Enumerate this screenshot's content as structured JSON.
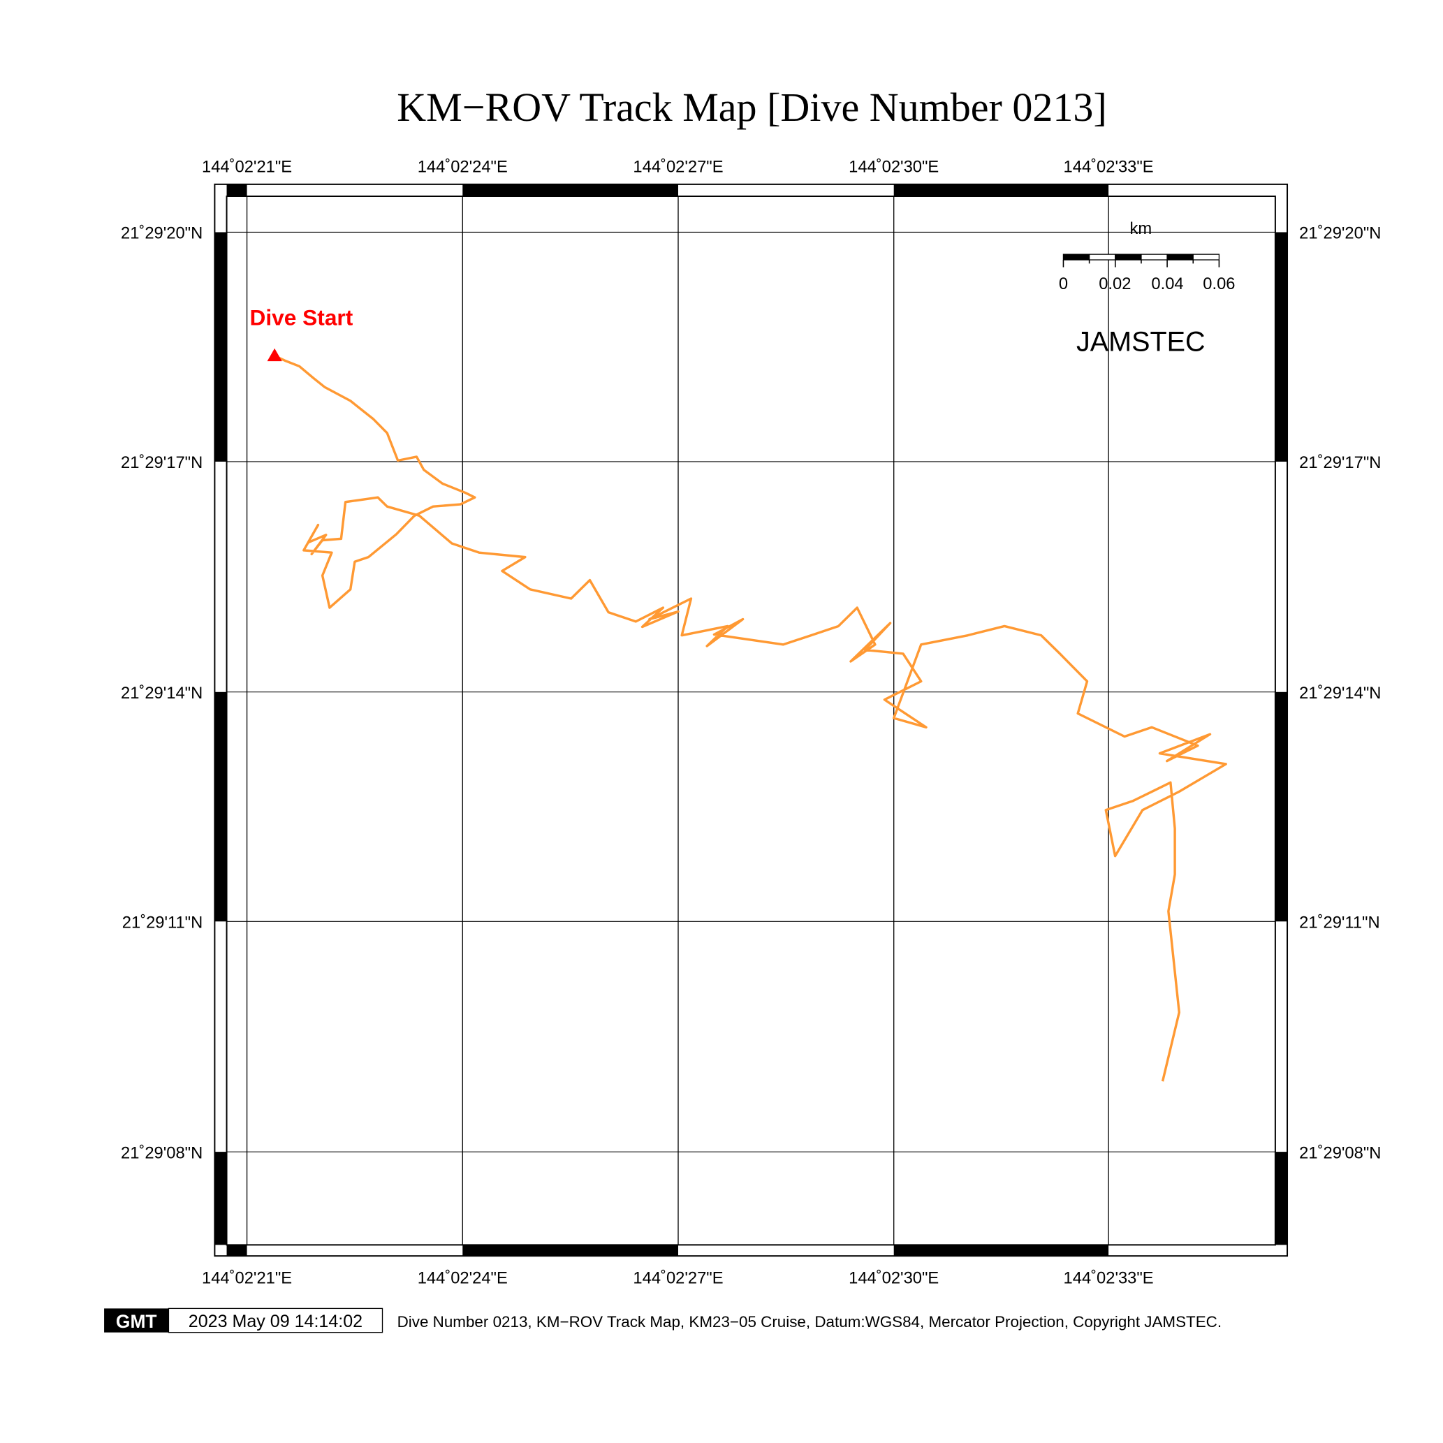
{
  "title": "KM−ROV Track Map [Dive Number 0213]",
  "axes": {
    "lon_labels": [
      "144˚02'21\"E",
      "144˚02'24\"E",
      "144˚02'27\"E",
      "144˚02'30\"E",
      "144˚02'33\"E"
    ],
    "lat_labels": [
      "21˚29'20\"N",
      "21˚29'17\"N",
      "21˚29'14\"N",
      "21˚29'11\"N",
      "21˚29'08\"N"
    ]
  },
  "scale_bar": {
    "unit": "km",
    "ticks": [
      "0",
      "0.02",
      "0.04",
      "0.06"
    ]
  },
  "logo_text": "JAMSTEC",
  "start_label": "Dive Start",
  "colors": {
    "track": "#ff9933",
    "start": "#ff0000",
    "frame": "#000000"
  },
  "track": {
    "lon_prefix": "144˚02'",
    "lat_prefix": "21˚29'",
    "unit": "seconds",
    "points": [
      [
        21.38,
        18.39
      ],
      [
        21.54,
        18.32
      ],
      [
        21.73,
        18.25
      ],
      [
        21.92,
        18.1
      ],
      [
        22.08,
        17.98
      ],
      [
        22.44,
        17.8
      ],
      [
        22.76,
        17.56
      ],
      [
        22.95,
        17.38
      ],
      [
        23.1,
        17.02
      ],
      [
        23.36,
        17.07
      ],
      [
        23.46,
        16.9
      ],
      [
        23.72,
        16.72
      ],
      [
        24.04,
        16.6
      ],
      [
        24.17,
        16.54
      ],
      [
        23.97,
        16.45
      ],
      [
        23.59,
        16.42
      ],
      [
        23.33,
        16.3
      ],
      [
        23.08,
        16.06
      ],
      [
        22.69,
        15.76
      ],
      [
        22.5,
        15.7
      ],
      [
        22.44,
        15.34
      ],
      [
        22.15,
        15.1
      ],
      [
        22.05,
        15.52
      ],
      [
        22.18,
        15.82
      ],
      [
        21.79,
        15.85
      ],
      [
        21.99,
        16.18
      ],
      [
        21.85,
        15.95
      ],
      [
        22.1,
        16.05
      ],
      [
        21.9,
        15.8
      ],
      [
        22.05,
        15.98
      ],
      [
        22.31,
        16.0
      ],
      [
        22.37,
        16.48
      ],
      [
        22.82,
        16.54
      ],
      [
        22.95,
        16.42
      ],
      [
        23.4,
        16.3
      ],
      [
        23.85,
        15.94
      ],
      [
        24.23,
        15.82
      ],
      [
        24.87,
        15.76
      ],
      [
        24.55,
        15.58
      ],
      [
        24.94,
        15.34
      ],
      [
        25.51,
        15.22
      ],
      [
        25.77,
        15.46
      ],
      [
        26.03,
        15.04
      ],
      [
        26.41,
        14.92
      ],
      [
        26.79,
        15.1
      ],
      [
        26.5,
        14.85
      ],
      [
        27.0,
        15.05
      ],
      [
        26.6,
        14.95
      ],
      [
        27.18,
        15.22
      ],
      [
        27.05,
        14.74
      ],
      [
        27.69,
        14.86
      ],
      [
        27.4,
        14.6
      ],
      [
        27.9,
        14.95
      ],
      [
        27.5,
        14.75
      ],
      [
        28.46,
        14.62
      ],
      [
        28.85,
        14.74
      ],
      [
        29.23,
        14.86
      ],
      [
        29.49,
        15.1
      ],
      [
        29.74,
        14.62
      ],
      [
        29.4,
        14.4
      ],
      [
        29.95,
        14.9
      ],
      [
        29.6,
        14.55
      ],
      [
        30.13,
        14.5
      ],
      [
        30.38,
        14.14
      ],
      [
        29.87,
        13.9
      ],
      [
        30.45,
        13.54
      ],
      [
        30.0,
        13.66
      ],
      [
        30.38,
        14.62
      ],
      [
        31.03,
        14.74
      ],
      [
        31.54,
        14.86
      ],
      [
        32.05,
        14.74
      ],
      [
        32.31,
        14.5
      ],
      [
        32.69,
        14.14
      ],
      [
        32.56,
        13.72
      ],
      [
        33.21,
        13.42
      ],
      [
        33.59,
        13.54
      ],
      [
        34.23,
        13.3
      ],
      [
        33.8,
        13.1
      ],
      [
        34.4,
        13.45
      ],
      [
        33.7,
        13.2
      ],
      [
        34.62,
        13.06
      ],
      [
        33.97,
        12.7
      ],
      [
        33.46,
        12.46
      ],
      [
        33.08,
        11.86
      ],
      [
        32.95,
        12.46
      ],
      [
        33.33,
        12.58
      ],
      [
        33.85,
        12.82
      ],
      [
        33.91,
        12.22
      ],
      [
        33.91,
        11.62
      ],
      [
        33.82,
        11.14
      ],
      [
        33.97,
        9.82
      ],
      [
        33.74,
        8.92
      ]
    ]
  },
  "footer": {
    "logo": "GMT",
    "timestamp": "2023 May 09 14:14:02",
    "caption": "Dive Number 0213, KM−ROV Track Map, KM23−05 Cruise, Datum:WGS84, Mercator Projection, Copyright JAMSTEC."
  }
}
